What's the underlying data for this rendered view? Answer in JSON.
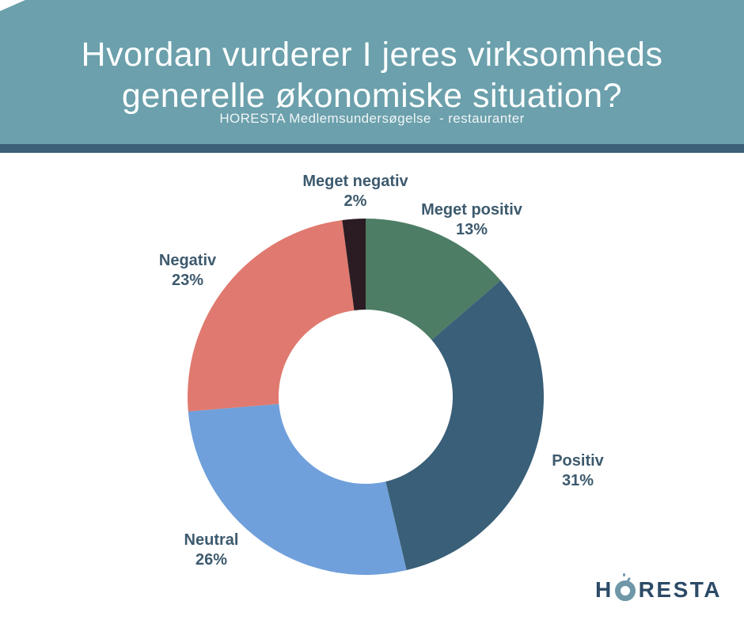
{
  "header": {
    "title_line1": "Hvordan vurderer I jeres virksomheds",
    "title_line2": "generelle økonomiske situation?",
    "subtitle": "HORESTA Medlemsundersøgelse  - restauranter",
    "background_color": "#6BA0AC",
    "stripe_color": "#3B6077",
    "title_color": "#FFFFFF"
  },
  "chart_data": {
    "type": "pie",
    "donut": true,
    "inner_radius_ratio": 0.49,
    "start_angle": "12-o-clock",
    "direction": "clockwise",
    "label_color": "#3D5A6E",
    "background": "#FFFFFF",
    "segments": [
      {
        "id": "meget-positiv",
        "label": "Meget positiv",
        "value": 13,
        "pct_label": "13%",
        "color": "#4D7D64"
      },
      {
        "id": "positiv",
        "label": "Positiv",
        "value": 31,
        "pct_label": "31%",
        "color": "#3A5F78"
      },
      {
        "id": "neutral",
        "label": "Neutral",
        "value": 26,
        "pct_label": "26%",
        "color": "#6FA0DB"
      },
      {
        "id": "negativ",
        "label": "Negativ",
        "value": 23,
        "pct_label": "23%",
        "color": "#E0796F"
      },
      {
        "id": "meget-negativ",
        "label": "Meget negativ",
        "value": 2,
        "pct_label": "2%",
        "color": "#2B1C23"
      }
    ]
  },
  "logo": {
    "text_before_o": "H",
    "text_after_o": "RESTA",
    "text_color": "#2C4A66",
    "ring_color": "#6F97A8"
  }
}
